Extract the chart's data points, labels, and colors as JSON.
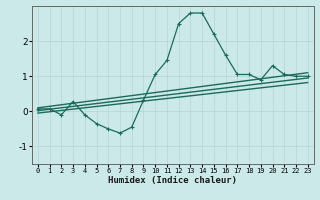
{
  "xlabel": "Humidex (Indice chaleur)",
  "xlim": [
    -0.5,
    23.5
  ],
  "ylim": [
    -1.5,
    3.0
  ],
  "yticks": [
    -1,
    0,
    1,
    2
  ],
  "xticks": [
    0,
    1,
    2,
    3,
    4,
    5,
    6,
    7,
    8,
    9,
    10,
    11,
    12,
    13,
    14,
    15,
    16,
    17,
    18,
    19,
    20,
    21,
    22,
    23
  ],
  "bg_color": "#cce9ea",
  "grid_color": "#b8d8d8",
  "line_color": "#1a6b5a",
  "curve1_x": [
    0,
    1,
    2,
    3,
    4,
    5,
    6,
    7,
    8,
    9,
    10,
    11,
    12,
    13,
    14,
    15,
    16,
    17,
    18,
    19,
    20,
    21,
    22,
    23
  ],
  "curve1_y": [
    0.07,
    0.07,
    -0.1,
    0.28,
    -0.1,
    -0.35,
    -0.5,
    -0.62,
    -0.45,
    0.32,
    1.05,
    1.45,
    2.5,
    2.8,
    2.8,
    2.2,
    1.6,
    1.05,
    1.05,
    0.9,
    1.3,
    1.05,
    1.0,
    1.0
  ],
  "curve2_x": [
    0,
    23
  ],
  "curve2_y": [
    0.1,
    1.1
  ],
  "curve3_x": [
    0,
    23
  ],
  "curve3_y": [
    0.02,
    0.95
  ],
  "curve4_x": [
    0,
    23
  ],
  "curve4_y": [
    -0.05,
    0.82
  ]
}
